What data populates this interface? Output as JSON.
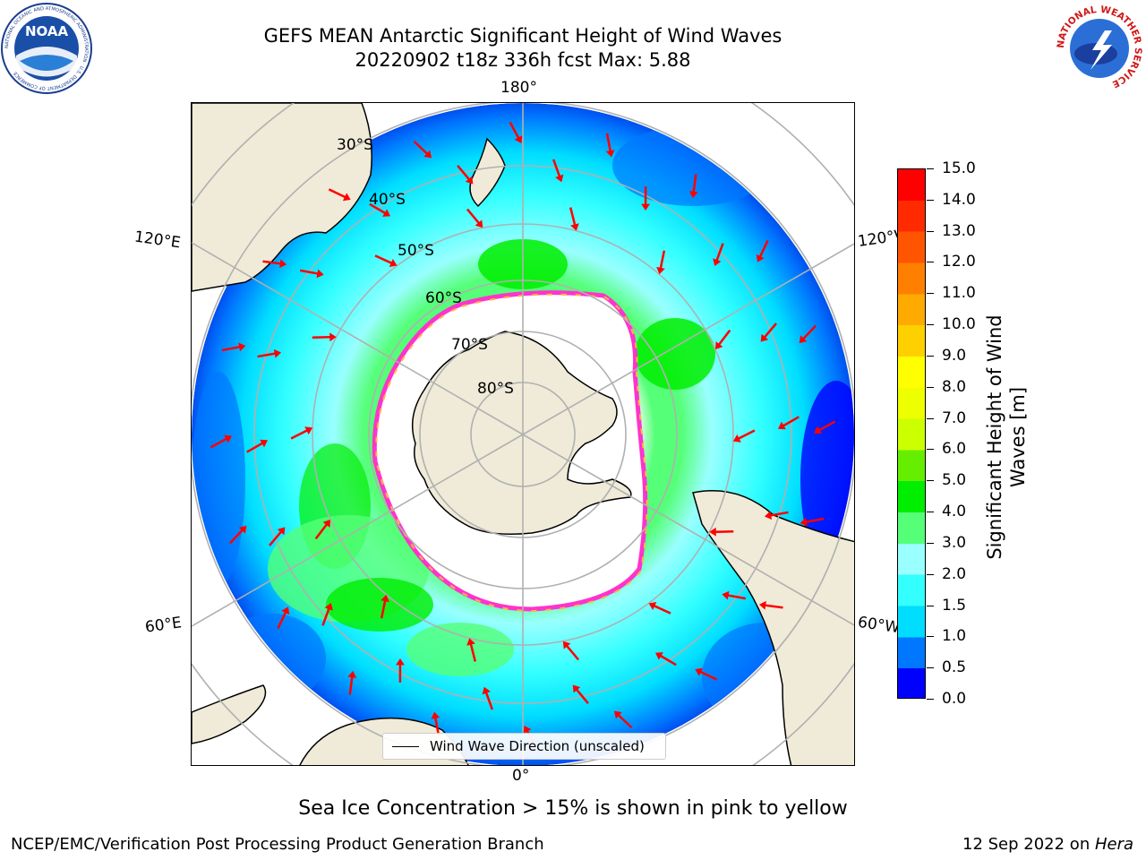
{
  "title": {
    "line1": "GEFS MEAN Antarctic Significant Height of Wind Waves",
    "line2": "20220902 t18z 336h fcst   Max: 5.88"
  },
  "logos": {
    "left": "NOAA",
    "left_ring": "NATIONAL OCEANIC AND ATMOSPHERIC ADMINISTRATION · U.S. DEPARTMENT OF COMMERCE",
    "right_ring": "NATIONAL WEATHER SERVICE"
  },
  "map": {
    "projection": "south-polar-stereographic",
    "lon_labels": {
      "top": "180°",
      "bottom": "0°",
      "left_upper": "120°E",
      "left_lower": "60°E",
      "right_upper": "120°W",
      "right_lower": "60°W"
    },
    "lat_labels": [
      "30°S",
      "40°S",
      "50°S",
      "60°S",
      "70°S",
      "80°S"
    ],
    "colors": {
      "land": "#efebd8",
      "ocean_ice_free": "#ffffff",
      "grid": "#b0b0b0",
      "arrows": "#ff0000",
      "ice_edge": "#ff33cc",
      "ice_inner": "#ffb347"
    }
  },
  "legend": {
    "label": "Wind Wave Direction (unscaled)"
  },
  "colorbar": {
    "title": "Significant Height of Wind Waves [m]",
    "ticks": [
      "0.0",
      "0.5",
      "1.0",
      "1.5",
      "2.0",
      "3.0",
      "4.0",
      "5.0",
      "6.0",
      "7.0",
      "8.0",
      "9.0",
      "10.0",
      "11.0",
      "12.0",
      "13.0",
      "14.0",
      "15.0"
    ],
    "colors": [
      "#0000ff",
      "#0077ff",
      "#00ddff",
      "#33ffff",
      "#99ffff",
      "#55ff77",
      "#00ee00",
      "#66ee00",
      "#ccff00",
      "#eeff00",
      "#ffff00",
      "#ffd000",
      "#ffaa00",
      "#ff8000",
      "#ff5500",
      "#ff2a00",
      "#ff0000"
    ]
  },
  "caption": "Sea Ice Concentration > 15% is shown in pink to yellow",
  "footer": {
    "left": "NCEP/EMC/Verification Post Processing Product Generation Branch",
    "right_prefix": "12 Sep 2022 on ",
    "right_host": "Hera"
  }
}
